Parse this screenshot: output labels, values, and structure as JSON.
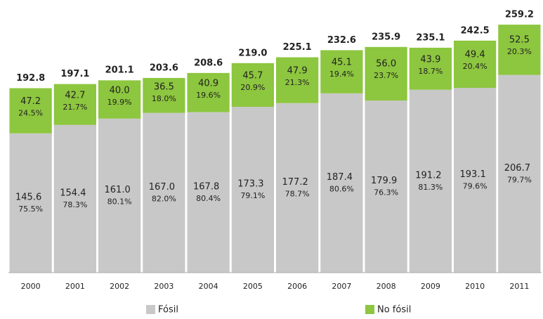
{
  "chart_data": {
    "type": "stacked-bar",
    "categories": [
      "2000",
      "2001",
      "2002",
      "2003",
      "2004",
      "2005",
      "2006",
      "2007",
      "2008",
      "2009",
      "2010",
      "2011"
    ],
    "series": [
      {
        "name": "Fósil",
        "color": "#c8c8c8",
        "values": [
          145.6,
          154.4,
          161.0,
          167.0,
          167.8,
          173.3,
          177.2,
          187.4,
          179.9,
          191.2,
          193.1,
          206.7
        ],
        "value_labels": [
          "145.6",
          "154.4",
          "161.0",
          "167.0",
          "167.8",
          "173.3",
          "177.2",
          "187.4",
          "179.9",
          "191.2",
          "193.1",
          "206.7"
        ],
        "shares": [
          75.5,
          78.3,
          80.1,
          82.0,
          80.4,
          79.1,
          78.7,
          80.6,
          76.3,
          81.3,
          79.6,
          79.7
        ],
        "share_labels": [
          "75.5%",
          "78.3%",
          "80.1%",
          "82.0%",
          "80.4%",
          "79.1%",
          "78.7%",
          "80.6%",
          "76.3%",
          "81.3%",
          "79.6%",
          "79.7%"
        ]
      },
      {
        "name": "No fósil",
        "color": "#8dc63f",
        "values": [
          47.2,
          42.7,
          40.0,
          36.5,
          40.9,
          45.7,
          47.9,
          45.1,
          56.0,
          43.9,
          49.4,
          52.5
        ],
        "value_labels": [
          "47.2",
          "42.7",
          "40.0",
          "36.5",
          "40.9",
          "45.7",
          "47.9",
          "45.1",
          "56.0",
          "43.9",
          "49.4",
          "52.5"
        ],
        "shares": [
          24.5,
          21.7,
          19.9,
          18.0,
          19.6,
          20.9,
          21.3,
          19.4,
          23.7,
          18.7,
          20.4,
          20.3
        ],
        "share_labels": [
          "24.5%",
          "21.7%",
          "19.9%",
          "18.0%",
          "19.6%",
          "20.9%",
          "21.3%",
          "19.4%",
          "23.7%",
          "18.7%",
          "20.4%",
          "20.3%"
        ]
      }
    ],
    "totals": [
      192.8,
      197.1,
      201.1,
      203.6,
      208.6,
      219.0,
      225.1,
      232.6,
      235.9,
      235.1,
      242.5,
      259.2
    ],
    "total_labels": [
      "192.8",
      "197.1",
      "201.1",
      "203.6",
      "208.6",
      "219.0",
      "225.1",
      "232.6",
      "235.9",
      "235.1",
      "242.5",
      "259.2"
    ],
    "ylim": [
      0,
      260
    ]
  }
}
